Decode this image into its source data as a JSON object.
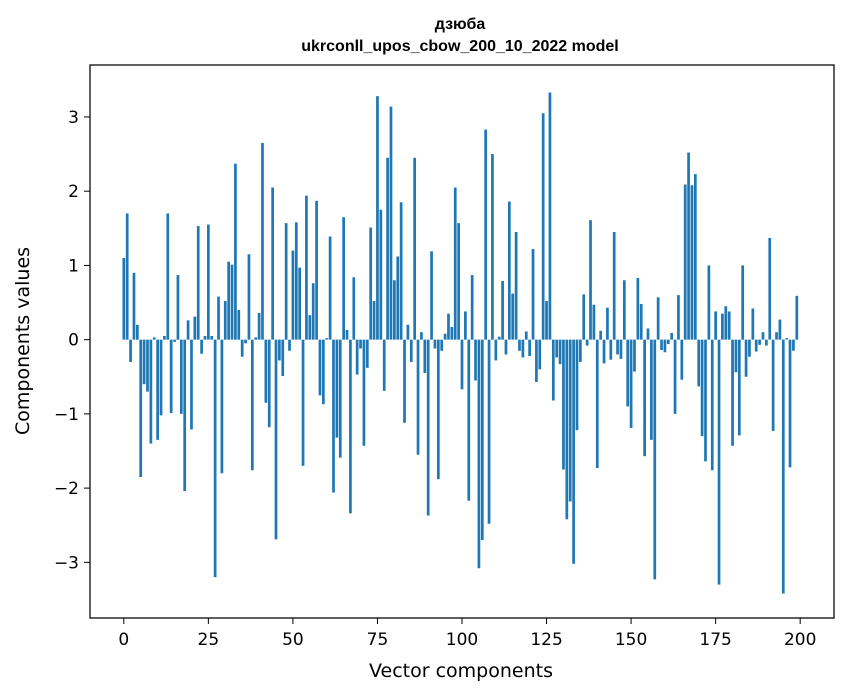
{
  "chart_data": {
    "type": "bar",
    "title": "дзюба",
    "subtitle": "ukrconll_upos_cbow_200_10_2022 model",
    "xlabel": "Vector components",
    "ylabel": "Components values",
    "xlim": [
      -10,
      210
    ],
    "ylim": [
      -3.75,
      3.7
    ],
    "xticks": [
      0,
      25,
      50,
      75,
      100,
      125,
      150,
      175,
      200
    ],
    "yticks": [
      -3,
      -2,
      -1,
      0,
      1,
      2,
      3
    ],
    "xtick_labels": [
      "0",
      "25",
      "50",
      "75",
      "100",
      "125",
      "150",
      "175",
      "200"
    ],
    "ytick_labels": [
      "−3",
      "−2",
      "−1",
      "0",
      "1",
      "2",
      "3"
    ],
    "grid": false,
    "bar_color": "#1f77b4",
    "x": [
      0,
      1,
      2,
      3,
      4,
      5,
      6,
      7,
      8,
      9,
      10,
      11,
      12,
      13,
      14,
      15,
      16,
      17,
      18,
      19,
      20,
      21,
      22,
      23,
      24,
      25,
      26,
      27,
      28,
      29,
      30,
      31,
      32,
      33,
      34,
      35,
      36,
      37,
      38,
      39,
      40,
      41,
      42,
      43,
      44,
      45,
      46,
      47,
      48,
      49,
      50,
      51,
      52,
      53,
      54,
      55,
      56,
      57,
      58,
      59,
      60,
      61,
      62,
      63,
      64,
      65,
      66,
      67,
      68,
      69,
      70,
      71,
      72,
      73,
      74,
      75,
      76,
      77,
      78,
      79,
      80,
      81,
      82,
      83,
      84,
      85,
      86,
      87,
      88,
      89,
      90,
      91,
      92,
      93,
      94,
      95,
      96,
      97,
      98,
      99,
      100,
      101,
      102,
      103,
      104,
      105,
      106,
      107,
      108,
      109,
      110,
      111,
      112,
      113,
      114,
      115,
      116,
      117,
      118,
      119,
      120,
      121,
      122,
      123,
      124,
      125,
      126,
      127,
      128,
      129,
      130,
      131,
      132,
      133,
      134,
      135,
      136,
      137,
      138,
      139,
      140,
      141,
      142,
      143,
      144,
      145,
      146,
      147,
      148,
      149,
      150,
      151,
      152,
      153,
      154,
      155,
      156,
      157,
      158,
      159,
      160,
      161,
      162,
      163,
      164,
      165,
      166,
      167,
      168,
      169,
      170,
      171,
      172,
      173,
      174,
      175,
      176,
      177,
      178,
      179,
      180,
      181,
      182,
      183,
      184,
      185,
      186,
      187,
      188,
      189,
      190,
      191,
      192,
      193,
      194,
      195,
      196,
      197,
      198,
      199
    ],
    "values": [
      1.1,
      1.7,
      -0.3,
      0.9,
      0.2,
      -1.85,
      -0.6,
      -0.7,
      -1.4,
      0.03,
      -1.35,
      -1.02,
      0.05,
      1.7,
      -0.99,
      -0.03,
      0.87,
      -1.0,
      -2.04,
      0.26,
      -1.21,
      0.31,
      1.53,
      -0.19,
      0.05,
      1.55,
      0.05,
      -3.2,
      0.58,
      -1.8,
      0.52,
      1.05,
      1.01,
      2.37,
      0.4,
      -0.23,
      -0.05,
      1.15,
      -1.76,
      0.03,
      0.36,
      2.65,
      -0.85,
      -1.18,
      2.05,
      -2.69,
      -0.28,
      -0.49,
      1.57,
      -0.15,
      1.2,
      1.58,
      0.97,
      -1.7,
      1.94,
      0.33,
      0.76,
      1.87,
      -0.75,
      -0.87,
      0.02,
      1.39,
      -2.06,
      -1.32,
      -1.59,
      1.65,
      0.13,
      -2.34,
      0.84,
      -0.47,
      -0.12,
      -1.43,
      -0.38,
      1.51,
      0.52,
      3.28,
      1.75,
      -0.69,
      2.45,
      3.14,
      0.8,
      1.12,
      1.85,
      -1.12,
      0.2,
      -0.3,
      2.45,
      -1.55,
      0.1,
      -0.45,
      -2.37,
      1.19,
      -0.12,
      -1.88,
      -0.15,
      0.08,
      0.35,
      0.17,
      2.05,
      1.57,
      -0.67,
      0.38,
      -2.17,
      0.87,
      -0.55,
      -3.08,
      -2.7,
      2.83,
      -2.48,
      2.5,
      -0.28,
      0.04,
      0.79,
      -0.2,
      1.86,
      0.62,
      1.45,
      -0.15,
      -0.24,
      0.11,
      -0.22,
      1.22,
      -0.57,
      -0.4,
      3.05,
      0.52,
      3.33,
      -0.82,
      -0.24,
      -0.33,
      -1.75,
      -2.42,
      -2.18,
      -3.02,
      -1.22,
      -0.3,
      0.61,
      -0.08,
      1.61,
      0.47,
      -1.73,
      0.12,
      -0.32,
      0.43,
      -0.27,
      1.45,
      -0.2,
      -0.26,
      0.8,
      -0.9,
      -1.19,
      -0.43,
      0.83,
      0.48,
      -1.57,
      0.15,
      -1.35,
      -3.23,
      0.57,
      -0.14,
      -0.17,
      -0.06,
      0.09,
      -1.0,
      0.6,
      -0.54,
      2.09,
      2.52,
      2.08,
      2.23,
      -0.63,
      -1.3,
      -1.64,
      1.0,
      -1.76,
      0.38,
      -3.3,
      0.35,
      0.45,
      0.38,
      -1.43,
      -0.44,
      -1.29,
      1.0,
      -0.5,
      -0.23,
      0.42,
      -0.16,
      -0.07,
      0.1,
      -0.08,
      1.37,
      -1.23,
      0.1,
      0.27,
      -3.42,
      0.02,
      -1.72,
      -0.15,
      0.59
    ]
  }
}
